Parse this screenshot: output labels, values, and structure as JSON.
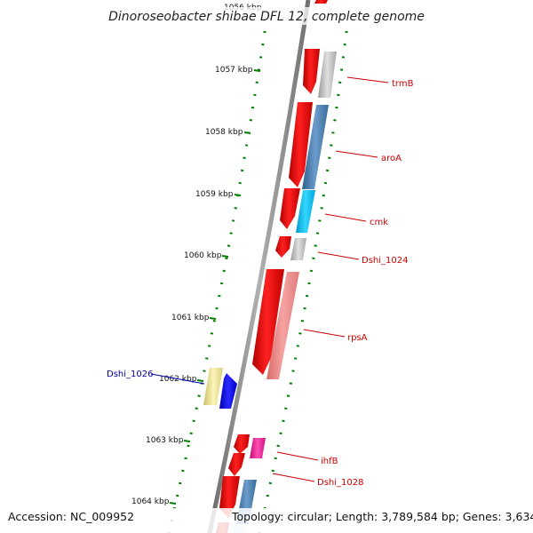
{
  "title": "Dinoroseobacter shibae DFL 12, complete genome",
  "footer": {
    "accession": "Accession: NC_009952",
    "topology": "Topology: circular; Length: 3,789,584 bp; Genes: 3,634"
  },
  "kbp_labels": [
    "1056 kbp",
    "1057 kbp",
    "1058 kbp",
    "1059 kbp",
    "1060 kbp",
    "1061 kbp",
    "1062 kbp",
    "1063 kbp",
    "1064 kbp"
  ],
  "genes": [
    {
      "name": "trmB",
      "strand": "plus",
      "color": "#c0c0c0",
      "label_color": "#cc0000"
    },
    {
      "name": "aroA",
      "strand": "plus",
      "color": "#4682b4",
      "label_color": "#cc0000"
    },
    {
      "name": "cmk",
      "strand": "plus",
      "color": "#00bfff",
      "label_color": "#cc0000"
    },
    {
      "name": "Dshi_1024",
      "strand": "plus",
      "color": "#c0c0c0",
      "label_color": "#cc0000"
    },
    {
      "name": "rpsA",
      "strand": "plus",
      "color": "#f08080",
      "label_color": "#cc0000"
    },
    {
      "name": "Dshi_1026",
      "strand": "minus",
      "color": "#f0e68c",
      "label_color": "#0000aa"
    },
    {
      "name": "ihfB",
      "strand": "plus",
      "color": "#ff1493",
      "label_color": "#cc0000"
    },
    {
      "name": "Dshi_1028",
      "strand": "plus",
      "color": "#4682b4",
      "label_color": "#cc0000"
    }
  ],
  "colors": {
    "backbone": "#888888",
    "cds": "#ff0000",
    "tick": "#008000",
    "label_line_red": "#cc0000",
    "label_line_blue": "#0000aa"
  }
}
